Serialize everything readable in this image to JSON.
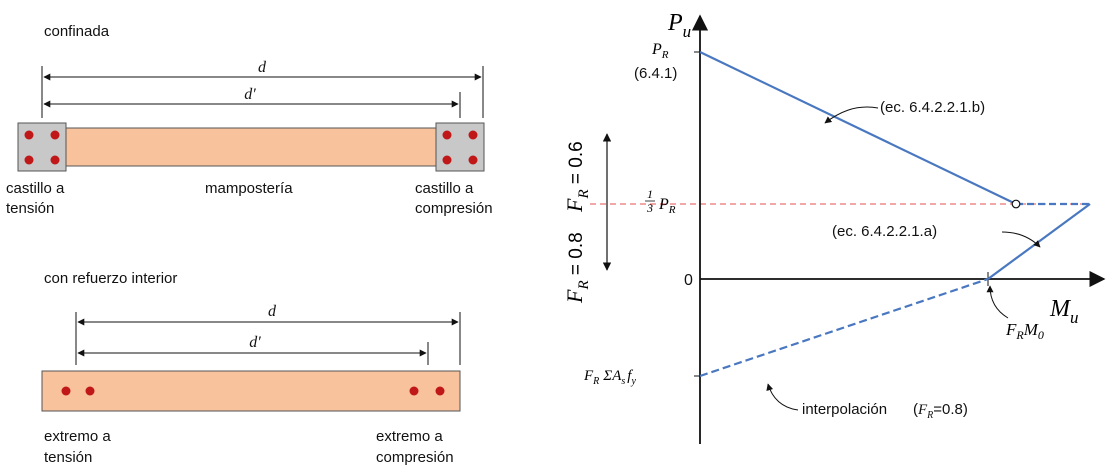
{
  "colors": {
    "masonry": "#f8c29c",
    "castillo": "#c8c8c8",
    "rebar": "#c01818",
    "line": "#4a78c0",
    "dashed_ref": "#e05050",
    "axis": "#111111"
  },
  "confined": {
    "title": "confinada",
    "dim_d": "d",
    "dim_d_prime": "d′",
    "left_label_1": "castillo a",
    "left_label_2": "tensión",
    "center_label": "mampostería",
    "right_label_1": "castillo a",
    "right_label_2": "compresión"
  },
  "interior": {
    "title": "con refuerzo interior",
    "dim_d": "d",
    "dim_d_prime": "d′",
    "left_label_1": "extremo a",
    "left_label_2": "tensión",
    "right_label_1": "extremo a",
    "right_label_2": "compresión"
  },
  "diagram": {
    "y_axis_main": "P",
    "y_axis_sub": "u",
    "x_axis_main": "M",
    "x_axis_sub": "u",
    "pr_main": "P",
    "pr_sub": "R",
    "pr_ref": "(6.4.1)",
    "third_num": "1",
    "third_den": "3",
    "third_main": "P",
    "third_sub": "R",
    "zero": "0",
    "eq_b": "(ec. 6.4.2.2.1.b)",
    "eq_a": "(ec. 6.4.2.2.1.a)",
    "frm0_f": "F",
    "frm0_r": "R",
    "frm0_m": "M",
    "frm0_0": "0",
    "bottom_f": "F",
    "bottom_r": "R",
    "bottom_sigma": "ΣA",
    "bottom_s": "s",
    "bottom_fy": "f",
    "bottom_y": "y",
    "interp_label": "interpolación",
    "interp_fr_open": "(",
    "interp_fr_f": "F",
    "interp_fr_r": "R",
    "interp_fr_val": "=0.8)",
    "fr_top_f": "F",
    "fr_top_r": "R",
    "fr_top_val": " = 0.6",
    "fr_bot_f": "F",
    "fr_bot_r": "R",
    "fr_bot_val": " = 0.8"
  }
}
